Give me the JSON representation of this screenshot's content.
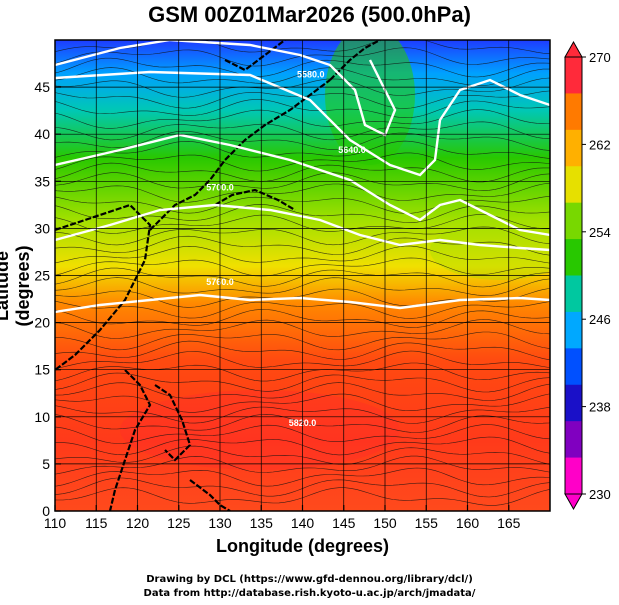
{
  "title": "GSM 00Z01Mar2026 (500.0hPa)",
  "axes": {
    "xlabel": "Longitude (degrees)",
    "ylabel": "Latitude  (degrees)",
    "xlim": [
      110,
      170
    ],
    "ylim": [
      0,
      50
    ],
    "xticks": [
      110,
      115,
      120,
      125,
      130,
      135,
      140,
      145,
      150,
      155,
      160,
      165
    ],
    "yticks": [
      0,
      5,
      10,
      15,
      20,
      25,
      30,
      35,
      40,
      45
    ]
  },
  "colorbar": {
    "min": 230,
    "max": 270,
    "labels": [
      "270",
      "262",
      "254",
      "246",
      "238",
      "230"
    ],
    "colors": [
      "#ff2a3a",
      "#ff7a00",
      "#ffb000",
      "#e6e000",
      "#78d800",
      "#28c800",
      "#00c8a0",
      "#00a8ff",
      "#0050ff",
      "#1a10c8",
      "#8000c0",
      "#ff00c8"
    ]
  },
  "contour_labels": [
    {
      "text": "5580.0",
      "lon": 141.0,
      "lat": 46.0
    },
    {
      "text": "5640.0",
      "lon": 146.0,
      "lat": 38.0
    },
    {
      "text": "5700.0",
      "lon": 130.0,
      "lat": 34.0
    },
    {
      "text": "5760.0",
      "lon": 130.0,
      "lat": 24.0
    },
    {
      "text": "5820.0",
      "lon": 140.0,
      "lat": 9.0
    }
  ],
  "credits": {
    "line1": "Drawing by DCL (https://www.gfd-dennou.org/library/dcl/)",
    "line2": "Data from http://database.rish.kyoto-u.ac.jp/arch/jmadata/"
  }
}
